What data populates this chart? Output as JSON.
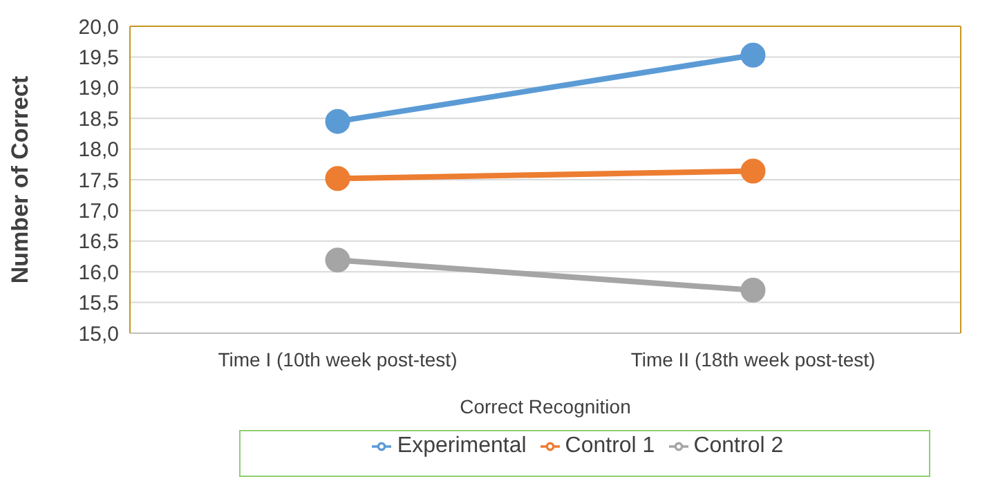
{
  "chart_data": {
    "type": "line",
    "xlabel": "Correct Recognition",
    "ylabel": "Number of Correct",
    "categories": [
      "Time I (10th week post-test)",
      "Time II (18th week post-test)"
    ],
    "series": [
      {
        "name": "Experimental",
        "color": "#5b9bd5",
        "values": [
          18.45,
          19.53
        ]
      },
      {
        "name": "Control 1",
        "color": "#ed7d31",
        "values": [
          17.52,
          17.64
        ]
      },
      {
        "name": "Control 2",
        "color": "#a5a5a5",
        "values": [
          16.19,
          15.7
        ]
      }
    ],
    "ylim": [
      15,
      20
    ],
    "yticks": [
      {
        "value": 15,
        "label": "15,0"
      },
      {
        "value": 15.5,
        "label": "15,5"
      },
      {
        "value": 16,
        "label": "16,0"
      },
      {
        "value": 16.5,
        "label": "16,5"
      },
      {
        "value": 17,
        "label": "17,0"
      },
      {
        "value": 17.5,
        "label": "17,5"
      },
      {
        "value": 18,
        "label": "18,0"
      },
      {
        "value": 18.5,
        "label": "18,5"
      },
      {
        "value": 19,
        "label": "19,0"
      },
      {
        "value": 19.5,
        "label": "19,5"
      },
      {
        "value": 20,
        "label": "20,0"
      }
    ],
    "grid": "y",
    "legend": "bottom",
    "marker": "circle",
    "line_style": "solid"
  }
}
